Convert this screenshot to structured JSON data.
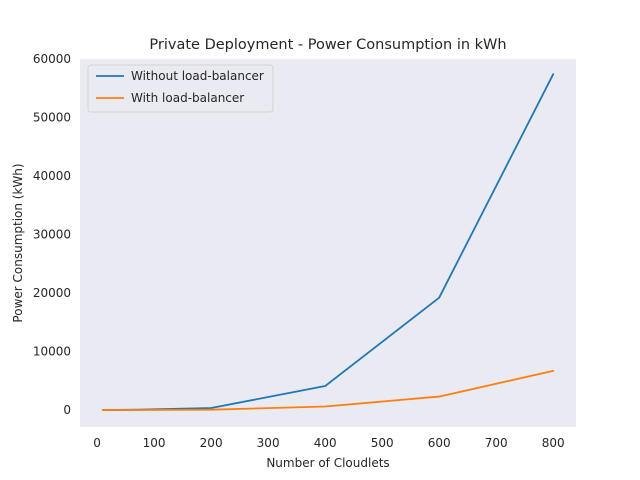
{
  "chart_data": {
    "type": "line",
    "title": "Private Deployment - Power Consumption in kWh",
    "xlabel": "Number of Cloudlets",
    "ylabel": "Power Consumption (kWh)",
    "xlim": [
      -30,
      840
    ],
    "ylim": [
      -2900,
      60000
    ],
    "xticks": [
      0,
      100,
      200,
      300,
      400,
      500,
      600,
      700,
      800
    ],
    "yticks": [
      0,
      10000,
      20000,
      30000,
      40000,
      50000,
      60000
    ],
    "grid": false,
    "legend_position": "top-left",
    "background": "#eaeaf2",
    "x": [
      10,
      75,
      200,
      400,
      600,
      800
    ],
    "series": [
      {
        "name": "Without load-balancer",
        "color": "#1f77b4",
        "values": [
          0,
          60,
          350,
          4100,
          19200,
          57400
        ]
      },
      {
        "name": "With load-balancer",
        "color": "#ff7f0e",
        "values": [
          0,
          10,
          60,
          600,
          2300,
          6700
        ]
      }
    ]
  }
}
